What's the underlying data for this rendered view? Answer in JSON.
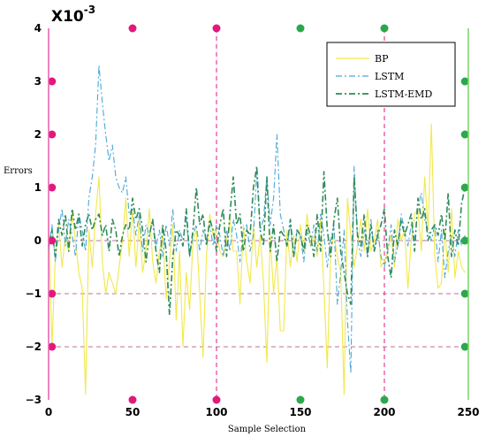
{
  "chart_data": {
    "type": "line",
    "title": "",
    "xlabel": "Sample Selection",
    "ylabel": "Errors",
    "exponent_base": "X10",
    "exponent_power": "-3",
    "xlim": [
      0,
      250
    ],
    "ylim": [
      -3,
      4
    ],
    "xticks": [
      0,
      50,
      100,
      150,
      200,
      250
    ],
    "xtick_labels": [
      "0",
      "50",
      "100",
      "150",
      "200",
      "250"
    ],
    "yticks": [
      -3,
      -2,
      -1,
      0,
      1,
      2,
      3,
      4
    ],
    "ytick_labels": [
      "−3",
      "−2",
      "−1",
      "0",
      "1",
      "2",
      "3",
      "4"
    ],
    "legend": {
      "position": "top-right",
      "entries": [
        "BP",
        "LSTM",
        "LSTM-EMD"
      ]
    },
    "series": [
      {
        "name": "BP",
        "color": "#f2e84a",
        "dash": "solid",
        "x": [
          0,
          2,
          4,
          6,
          8,
          10,
          12,
          14,
          16,
          18,
          20,
          22,
          24,
          26,
          28,
          30,
          32,
          34,
          36,
          38,
          40,
          42,
          44,
          46,
          48,
          50,
          52,
          54,
          56,
          58,
          60,
          62,
          64,
          66,
          68,
          70,
          72,
          74,
          76,
          78,
          80,
          82,
          84,
          86,
          88,
          90,
          92,
          94,
          96,
          98,
          100,
          102,
          104,
          106,
          108,
          110,
          112,
          114,
          116,
          118,
          120,
          122,
          124,
          126,
          128,
          130,
          132,
          134,
          136,
          138,
          140,
          142,
          144,
          146,
          148,
          150,
          152,
          154,
          156,
          158,
          160,
          162,
          164,
          166,
          168,
          170,
          172,
          174,
          176,
          178,
          180,
          182,
          184,
          186,
          188,
          190,
          192,
          194,
          196,
          198,
          200,
          202,
          204,
          206,
          208,
          210,
          212,
          214,
          216,
          218,
          220,
          222,
          224,
          226,
          228,
          230,
          232,
          234,
          236,
          238,
          240,
          242,
          244,
          246,
          248
        ],
        "y": [
          0.4,
          -2.0,
          -0.3,
          0.3,
          -0.5,
          0.1,
          -0.2,
          0.5,
          0.0,
          -0.6,
          -0.9,
          -2.9,
          0.2,
          -0.5,
          0.5,
          1.2,
          -0.4,
          -1.0,
          -0.6,
          -0.8,
          -1.0,
          -0.5,
          0.0,
          0.8,
          -0.3,
          0.6,
          -0.5,
          0.4,
          -0.6,
          -0.2,
          0.6,
          -0.4,
          -0.8,
          -0.2,
          0.1,
          -1.1,
          -0.4,
          0.3,
          -1.5,
          -0.2,
          -2.0,
          -0.6,
          -1.3,
          0.0,
          0.2,
          -1.0,
          -2.2,
          -0.3,
          0.5,
          0.1,
          0.2,
          -0.2,
          -0.3,
          0.0,
          0.4,
          -0.2,
          -0.2,
          -1.2,
          0.3,
          -0.4,
          -0.8,
          0.3,
          -0.5,
          0.1,
          -0.8,
          -2.3,
          0.1,
          -1.0,
          -0.3,
          -1.7,
          -1.7,
          0.2,
          -0.5,
          0.1,
          -0.4,
          0.3,
          -0.2,
          0.5,
          -0.1,
          0.1,
          -0.3,
          0.4,
          -0.9,
          -2.4,
          -0.2,
          0.1,
          -0.3,
          -0.6,
          -2.9,
          0.8,
          0.1,
          -0.5,
          -0.1,
          0.4,
          -0.2,
          0.6,
          -0.2,
          0.0,
          0.4,
          -0.5,
          -0.4,
          -0.2,
          0.1,
          -0.5,
          0.4,
          0.0,
          0.2,
          -0.9,
          0.0,
          0.5,
          0.6,
          -0.2,
          1.2,
          0.2,
          2.2,
          -0.3,
          -0.9,
          -0.8,
          0.2,
          -0.6,
          0.6,
          -0.7,
          -0.2,
          -0.5,
          -0.6
        ]
      },
      {
        "name": "LSTM",
        "color": "#4aa8d8",
        "dash": "dashdot",
        "x": [
          0,
          2,
          4,
          6,
          8,
          10,
          12,
          14,
          16,
          18,
          20,
          22,
          24,
          26,
          28,
          30,
          32,
          34,
          36,
          38,
          40,
          42,
          44,
          46,
          48,
          50,
          52,
          54,
          56,
          58,
          60,
          62,
          64,
          66,
          68,
          70,
          72,
          74,
          76,
          78,
          80,
          82,
          84,
          86,
          88,
          90,
          92,
          94,
          96,
          98,
          100,
          102,
          104,
          106,
          108,
          110,
          112,
          114,
          116,
          118,
          120,
          122,
          124,
          126,
          128,
          130,
          132,
          134,
          136,
          138,
          140,
          142,
          144,
          146,
          148,
          150,
          152,
          154,
          156,
          158,
          160,
          162,
          164,
          166,
          168,
          170,
          172,
          174,
          176,
          178,
          180,
          182,
          184,
          186,
          188,
          190,
          192,
          194,
          196,
          198,
          200,
          202,
          204,
          206,
          208,
          210,
          212,
          214,
          216,
          218,
          220,
          222,
          224,
          226,
          228,
          230,
          232,
          234,
          236,
          238,
          240,
          242,
          244,
          246,
          248
        ],
        "y": [
          -0.2,
          0.3,
          -0.4,
          0.2,
          0.6,
          -0.1,
          0.4,
          0.1,
          -0.3,
          0.5,
          0.2,
          -0.2,
          0.8,
          1.2,
          1.8,
          3.3,
          2.6,
          2.0,
          1.5,
          1.8,
          1.2,
          1.0,
          0.9,
          1.2,
          0.5,
          0.6,
          0.1,
          0.5,
          -0.2,
          0.3,
          0.1,
          0.4,
          -0.1,
          0.2,
          -0.3,
          0.3,
          -0.1,
          0.6,
          -0.2,
          0.2,
          0.0,
          0.4,
          -0.3,
          0.1,
          0.3,
          -0.2,
          0.2,
          0.0,
          0.3,
          -0.1,
          0.3,
          0.1,
          -0.3,
          0.2,
          -0.2,
          0.4,
          0.1,
          -0.4,
          0.2,
          0.3,
          -0.2,
          0.1,
          1.3,
          0.2,
          0.4,
          1.2,
          0.3,
          0.8,
          2.0,
          0.5,
          0.2,
          -0.1,
          0.3,
          -0.3,
          0.2,
          0.1,
          -0.4,
          0.2,
          -0.1,
          0.3,
          -0.2,
          0.5,
          0.1,
          -0.5,
          0.0,
          0.3,
          -1.2,
          -0.6,
          0.2,
          -1.5,
          -2.5,
          1.4,
          0.0,
          -0.3,
          0.2,
          -0.3,
          0.4,
          -0.2,
          0.2,
          -0.3,
          -0.5,
          -0.2,
          0.3,
          -0.4,
          -0.1,
          0.5,
          0.2,
          -0.1,
          0.3,
          0.0,
          0.6,
          0.9,
          0.4,
          0.2,
          0.0,
          0.3,
          -0.4,
          0.2,
          -0.7,
          -0.2,
          0.1,
          -0.3,
          0.2,
          -0.1,
          0.1
        ]
      },
      {
        "name": "LSTM-EMD",
        "color": "#2e8b57",
        "dash": "dashdot",
        "x": [
          0,
          2,
          4,
          6,
          8,
          10,
          12,
          14,
          16,
          18,
          20,
          22,
          24,
          26,
          28,
          30,
          32,
          34,
          36,
          38,
          40,
          42,
          44,
          46,
          48,
          50,
          52,
          54,
          56,
          58,
          60,
          62,
          64,
          66,
          68,
          70,
          72,
          74,
          76,
          78,
          80,
          82,
          84,
          86,
          88,
          90,
          92,
          94,
          96,
          98,
          100,
          102,
          104,
          106,
          108,
          110,
          112,
          114,
          116,
          118,
          120,
          122,
          124,
          126,
          128,
          130,
          132,
          134,
          136,
          138,
          140,
          142,
          144,
          146,
          148,
          150,
          152,
          154,
          156,
          158,
          160,
          162,
          164,
          166,
          168,
          170,
          172,
          174,
          176,
          178,
          180,
          182,
          184,
          186,
          188,
          190,
          192,
          194,
          196,
          198,
          200,
          202,
          204,
          206,
          208,
          210,
          212,
          214,
          216,
          218,
          220,
          222,
          224,
          226,
          228,
          230,
          232,
          234,
          236,
          238,
          240,
          242,
          244,
          246,
          248
        ],
        "y": [
          -0.1,
          0.2,
          -0.3,
          0.4,
          0.1,
          0.5,
          -0.2,
          0.6,
          0.2,
          0.5,
          -0.1,
          0.3,
          0.5,
          0.2,
          0.4,
          0.5,
          0.1,
          0.3,
          -0.2,
          0.4,
          0.2,
          -0.3,
          0.1,
          0.3,
          0.2,
          0.8,
          0.4,
          0.6,
          0.2,
          -0.4,
          0.1,
          0.4,
          -0.2,
          -0.6,
          0.3,
          -0.2,
          -1.4,
          -0.3,
          0.2,
          0.1,
          -0.1,
          0.6,
          -0.3,
          0.2,
          1.0,
          0.3,
          0.5,
          -0.1,
          0.4,
          0.2,
          -0.2,
          0.3,
          0.6,
          -0.3,
          0.5,
          1.2,
          0.3,
          0.5,
          -0.2,
          0.2,
          0.1,
          1.0,
          1.4,
          0.2,
          -0.1,
          1.2,
          -0.2,
          0.3,
          -0.4,
          0.2,
          0.1,
          -0.1,
          0.4,
          -0.3,
          0.2,
          0.1,
          -0.2,
          0.3,
          0.1,
          -0.3,
          0.5,
          -0.2,
          1.3,
          0.2,
          -0.3,
          0.4,
          0.8,
          -0.2,
          -0.6,
          -1.0,
          -1.2,
          1.2,
          0.1,
          -0.1,
          0.5,
          -0.3,
          0.3,
          -0.2,
          0.1,
          0.3,
          0.6,
          -0.3,
          -0.7,
          0.2,
          -0.1,
          0.4,
          0.1,
          0.3,
          0.5,
          -0.2,
          0.8,
          0.4,
          0.6,
          0.0,
          0.2,
          0.3,
          0.1,
          0.5,
          0.0,
          0.9,
          -0.3,
          0.2,
          -0.1,
          0.7,
          1.0
        ]
      }
    ]
  },
  "markers": {
    "magenta": "#e0197a",
    "green": "#2aa84a",
    "frame_left": "#e85db0",
    "frame_right": "#7ecf6a",
    "frame_top_left": "#e85db0",
    "frame_top_right": "#7ecf6a",
    "axis_points": [
      {
        "x": 2,
        "y": 0,
        "color": "magenta"
      },
      {
        "x": 2,
        "y": 1,
        "color": "magenta"
      },
      {
        "x": 2,
        "y": 2,
        "color": "magenta"
      },
      {
        "x": 2,
        "y": 3,
        "color": "magenta"
      },
      {
        "x": 2,
        "y": -1,
        "color": "magenta"
      },
      {
        "x": 2,
        "y": -2,
        "color": "magenta"
      },
      {
        "x": 50,
        "y": 4,
        "color": "magenta"
      },
      {
        "x": 100,
        "y": 4,
        "color": "magenta"
      },
      {
        "x": 150,
        "y": 4,
        "color": "green"
      },
      {
        "x": 200,
        "y": 4,
        "color": "green"
      },
      {
        "x": 50,
        "y": -3,
        "color": "magenta"
      },
      {
        "x": 100,
        "y": -3,
        "color": "magenta"
      },
      {
        "x": 150,
        "y": -3,
        "color": "green"
      },
      {
        "x": 200,
        "y": -3,
        "color": "green"
      },
      {
        "x": 248,
        "y": 0,
        "color": "green"
      },
      {
        "x": 248,
        "y": 1,
        "color": "green"
      },
      {
        "x": 248,
        "y": 2,
        "color": "green"
      },
      {
        "x": 248,
        "y": 3,
        "color": "green"
      },
      {
        "x": 248,
        "y": -1,
        "color": "green"
      },
      {
        "x": 248,
        "y": -2,
        "color": "green"
      }
    ],
    "vertical_dashed": [
      100,
      200
    ],
    "horizontal_dashed": [
      -1,
      -2,
      0
    ]
  }
}
